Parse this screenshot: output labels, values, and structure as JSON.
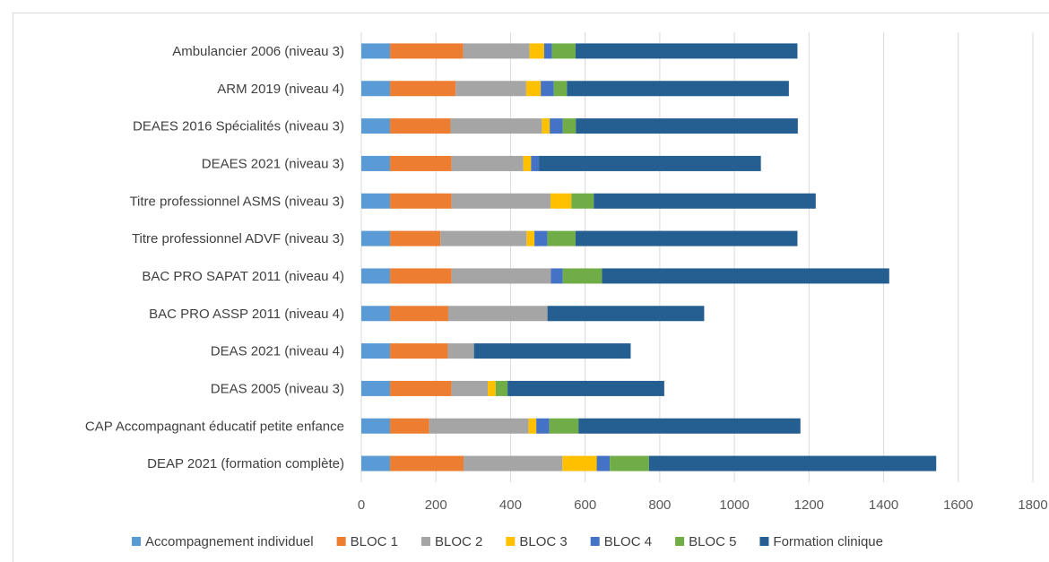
{
  "chart_data": {
    "type": "bar",
    "orientation": "horizontal",
    "stacked": true,
    "categories": [
      "Ambulancier 2006 (niveau 3)",
      "ARM 2019 (niveau 4)",
      "DEAES 2016 Spécialités (niveau 3)",
      "DEAES 2021 (niveau 3)",
      "Titre professionnel ASMS (niveau 3)",
      "Titre professionnel ADVF (niveau 3)",
      "BAC PRO SAPAT 2011 (niveau 4)",
      "BAC PRO ASSP 2011 (niveau 4)",
      "DEAS 2021 (niveau 4)",
      "DEAS 2005 (niveau 3)",
      "CAP Accompagnant éducatif petite enfance",
      "DEAP 2021 (formation complète)"
    ],
    "series": [
      {
        "name": "Accompagnement individuel",
        "color": "#5b9bd5",
        "values": [
          77,
          77,
          77,
          77,
          77,
          77,
          77,
          77,
          77,
          77,
          77,
          77
        ]
      },
      {
        "name": "BLOC 1",
        "color": "#ed7d31",
        "values": [
          196,
          176,
          162,
          165,
          165,
          135,
          165,
          156,
          155,
          165,
          105,
          197
        ]
      },
      {
        "name": "BLOC 2",
        "color": "#a5a5a5",
        "values": [
          178,
          189,
          245,
          192,
          265,
          231,
          266,
          266,
          70,
          97,
          266,
          265
        ]
      },
      {
        "name": "BLOC 3",
        "color": "#ffc000",
        "values": [
          39,
          39,
          21,
          21,
          56,
          21,
          0,
          0,
          0,
          21,
          21,
          92
        ]
      },
      {
        "name": "BLOC 4",
        "color": "#4472c4",
        "values": [
          21,
          35,
          35,
          21,
          0,
          35,
          32,
          0,
          0,
          0,
          35,
          35
        ]
      },
      {
        "name": "BLOC 5",
        "color": "#70ad47",
        "values": [
          63,
          35,
          35,
          0,
          60,
          75,
          105,
          0,
          0,
          32,
          78,
          105
        ]
      },
      {
        "name": "Formation clinique",
        "color": "#255e91",
        "values": [
          595,
          595,
          595,
          595,
          595,
          595,
          770,
          420,
          420,
          420,
          595,
          770
        ]
      }
    ],
    "xlim": [
      0,
      1800
    ],
    "xticks": [
      0,
      200,
      400,
      600,
      800,
      1000,
      1200,
      1400,
      1600,
      1800
    ],
    "grid": "vertical",
    "legend_position": "bottom"
  }
}
